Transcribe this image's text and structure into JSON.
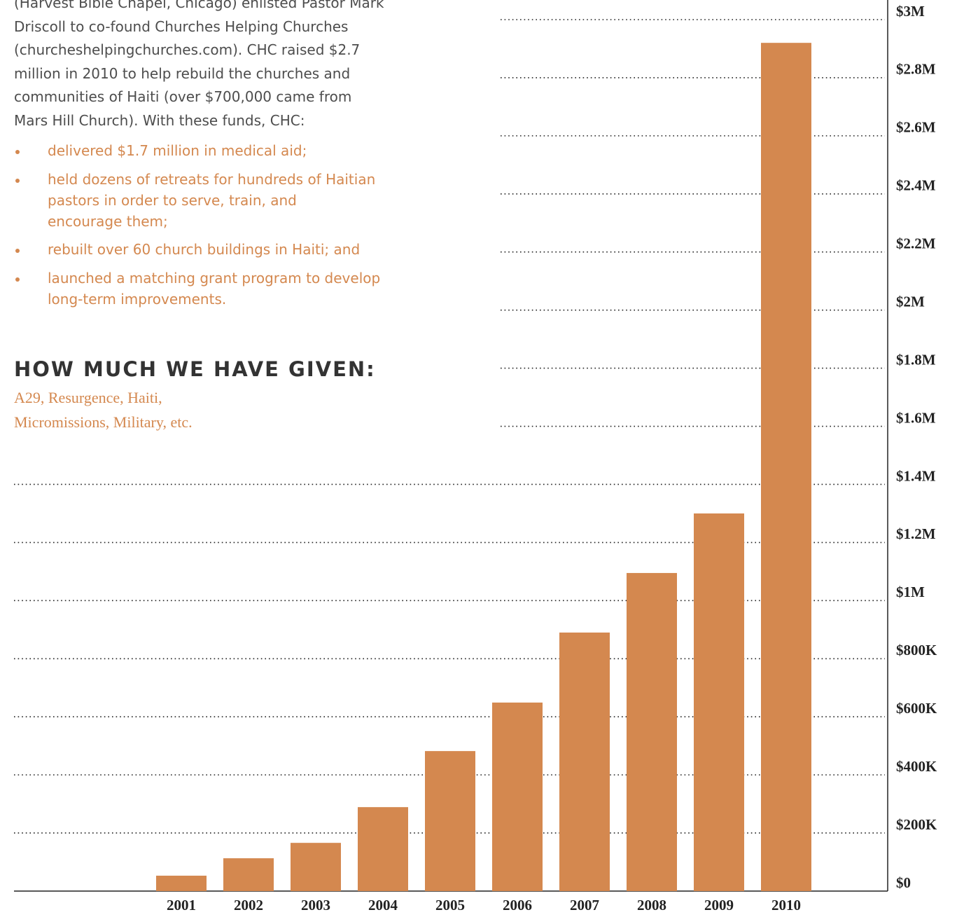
{
  "text": {
    "paragraph": [
      "(Harvest Bible Chapel, Chicago) enlisted Pastor Mark",
      "Driscoll to co-found Churches Helping Churches",
      "(churcheshelpingchurches.com). CHC raised $2.7",
      "million in 2010 to help rebuild the churches and",
      "communities of Haiti (over $700,000 came from",
      "Mars Hill Church). With these funds, CHC:"
    ],
    "bullets": [
      [
        "delivered $1.7 million in medical aid;"
      ],
      [
        "held dozens of retreats for hundreds of Haitian",
        "pastors in order to serve, train, and",
        "encourage them;"
      ],
      [
        "rebuilt over 60 church buildings in Haiti; and"
      ],
      [
        "launched a matching grant program to develop",
        "long-term improvements."
      ]
    ]
  },
  "chart_data": {
    "type": "bar",
    "title": "HOW MUCH WE HAVE GIVEN:",
    "subtitle": [
      "A29, Resurgence, Haiti,",
      "Micromissions, Military, etc."
    ],
    "categories": [
      "2001",
      "2002",
      "2003",
      "2004",
      "2005",
      "2006",
      "2007",
      "2008",
      "2009",
      "2010"
    ],
    "values": [
      53000,
      113000,
      166000,
      289000,
      482000,
      649000,
      890000,
      1095000,
      1300000,
      2920000
    ],
    "color": "#d4884f",
    "ylim": [
      0,
      3000000
    ],
    "grid": true,
    "yticks": [
      {
        "value": 0,
        "label": "$0"
      },
      {
        "value": 200000,
        "label": "$200K"
      },
      {
        "value": 400000,
        "label": "$400K"
      },
      {
        "value": 600000,
        "label": "$600K"
      },
      {
        "value": 800000,
        "label": "$800K"
      },
      {
        "value": 1000000,
        "label": "$1M"
      },
      {
        "value": 1200000,
        "label": "$1.2M"
      },
      {
        "value": 1400000,
        "label": "$1.4M"
      },
      {
        "value": 1600000,
        "label": "$1.6M"
      },
      {
        "value": 1800000,
        "label": "$1.8M"
      },
      {
        "value": 2000000,
        "label": "$2M"
      },
      {
        "value": 2200000,
        "label": "$2.2M"
      },
      {
        "value": 2400000,
        "label": "$2.4M"
      },
      {
        "value": 2600000,
        "label": "$2.6M"
      },
      {
        "value": 2800000,
        "label": "$2.8M"
      },
      {
        "value": 3000000,
        "label": "$3M"
      }
    ]
  }
}
